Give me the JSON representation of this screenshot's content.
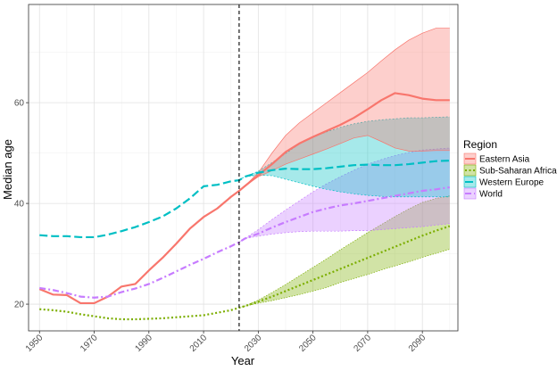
{
  "chart_data": {
    "type": "line",
    "xlabel": "Year",
    "ylabel": "Median age",
    "xlim": [
      1946,
      2103
    ],
    "ylim": [
      14.7,
      79.5
    ],
    "x_ticks": [
      1950,
      1970,
      1990,
      2010,
      2030,
      2050,
      2070,
      2090
    ],
    "y_ticks": [
      20,
      40,
      60
    ],
    "grid": true,
    "vline": 2023,
    "legend": {
      "title": "Region",
      "position": "right"
    },
    "series": [
      {
        "name": "Eastern Asia",
        "color": "#f8766d",
        "dash": "solid",
        "x": [
          1950,
          1955,
          1960,
          1965,
          1970,
          1975,
          1980,
          1985,
          1990,
          1995,
          2000,
          2005,
          2010,
          2015,
          2020,
          2023,
          2025,
          2030,
          2035,
          2040,
          2045,
          2050,
          2055,
          2060,
          2065,
          2070,
          2075,
          2080,
          2085,
          2090,
          2095,
          2100
        ],
        "values": [
          23.0,
          21.9,
          21.8,
          20.2,
          20.2,
          21.5,
          23.5,
          24.0,
          26.7,
          29.2,
          32.0,
          35.0,
          37.3,
          39.0,
          41.3,
          42.5,
          43.4,
          45.6,
          47.8,
          50.2,
          51.9,
          53.2,
          54.4,
          55.6,
          57.0,
          58.7,
          60.5,
          61.9,
          61.5,
          60.8,
          60.5,
          60.5
        ],
        "band_upper": [
          null,
          null,
          null,
          null,
          null,
          null,
          null,
          null,
          null,
          null,
          null,
          null,
          null,
          null,
          null,
          42.5,
          43.4,
          46.1,
          50.0,
          53.5,
          56.0,
          58.0,
          60.0,
          62.0,
          64.0,
          66.0,
          68.3,
          70.5,
          72.4,
          73.8,
          74.8,
          74.8
        ],
        "band_lower": [
          null,
          null,
          null,
          null,
          null,
          null,
          null,
          null,
          null,
          null,
          null,
          null,
          null,
          null,
          null,
          42.5,
          43.4,
          45.3,
          46.5,
          47.8,
          48.8,
          49.8,
          50.8,
          51.9,
          53.0,
          53.5,
          52.3,
          51.0,
          50.4,
          50.4,
          50.5,
          50.5
        ]
      },
      {
        "name": "Sub-Saharan Africa",
        "color": "#7cae00",
        "dash": "dotted",
        "x": [
          1950,
          1955,
          1960,
          1965,
          1970,
          1975,
          1980,
          1985,
          1990,
          1995,
          2000,
          2005,
          2010,
          2015,
          2020,
          2023,
          2025,
          2030,
          2035,
          2040,
          2045,
          2050,
          2055,
          2060,
          2065,
          2070,
          2075,
          2080,
          2085,
          2090,
          2095,
          2100
        ],
        "values": [
          19.0,
          18.8,
          18.5,
          18.0,
          17.6,
          17.2,
          17.0,
          17.0,
          17.1,
          17.2,
          17.4,
          17.6,
          17.8,
          18.3,
          18.8,
          19.3,
          19.6,
          20.5,
          21.5,
          22.6,
          23.7,
          24.8,
          25.9,
          27.0,
          28.1,
          29.2,
          30.3,
          31.4,
          32.5,
          33.6,
          34.6,
          35.5
        ],
        "band_upper": [
          null,
          null,
          null,
          null,
          null,
          null,
          null,
          null,
          null,
          null,
          null,
          null,
          null,
          null,
          null,
          19.3,
          19.6,
          20.8,
          22.3,
          23.9,
          25.6,
          27.3,
          29.0,
          30.8,
          32.5,
          34.2,
          35.8,
          37.4,
          38.9,
          40.2,
          41.0,
          41.5
        ],
        "band_lower": [
          null,
          null,
          null,
          null,
          null,
          null,
          null,
          null,
          null,
          null,
          null,
          null,
          null,
          null,
          null,
          19.3,
          19.6,
          20.2,
          20.7,
          21.3,
          21.9,
          22.6,
          23.3,
          24.3,
          25.1,
          25.9,
          26.8,
          27.6,
          28.4,
          29.3,
          30.1,
          30.9
        ]
      },
      {
        "name": "Western Europe",
        "color": "#00bfc4",
        "dash": "longdash",
        "x": [
          1950,
          1955,
          1960,
          1965,
          1970,
          1975,
          1980,
          1985,
          1990,
          1995,
          2000,
          2005,
          2010,
          2015,
          2020,
          2023,
          2025,
          2030,
          2035,
          2040,
          2045,
          2050,
          2055,
          2060,
          2065,
          2070,
          2075,
          2080,
          2085,
          2090,
          2095,
          2100
        ],
        "values": [
          33.7,
          33.5,
          33.5,
          33.3,
          33.3,
          33.8,
          34.5,
          35.3,
          36.3,
          37.4,
          39.0,
          41.0,
          43.4,
          43.7,
          44.4,
          44.6,
          45.3,
          46.1,
          46.6,
          46.9,
          46.8,
          46.8,
          47.0,
          47.3,
          47.6,
          47.7,
          47.6,
          47.6,
          47.8,
          48.1,
          48.4,
          48.5
        ],
        "band_upper": [
          null,
          null,
          null,
          null,
          null,
          null,
          null,
          null,
          null,
          null,
          null,
          null,
          null,
          null,
          null,
          44.6,
          45.3,
          46.4,
          48.1,
          49.9,
          51.8,
          53.2,
          54.2,
          55.1,
          55.8,
          56.3,
          56.6,
          56.8,
          57.0,
          57.0,
          57.1,
          57.2
        ],
        "band_lower": [
          null,
          null,
          null,
          null,
          null,
          null,
          null,
          null,
          null,
          null,
          null,
          null,
          null,
          null,
          null,
          44.6,
          45.3,
          45.6,
          45.5,
          44.8,
          44.1,
          43.4,
          42.8,
          42.3,
          41.9,
          41.6,
          41.4,
          41.3,
          41.3,
          41.3,
          41.3,
          41.3
        ]
      },
      {
        "name": "World",
        "color": "#c77cff",
        "dash": "dashdot",
        "x": [
          1950,
          1955,
          1960,
          1965,
          1970,
          1975,
          1980,
          1985,
          1990,
          1995,
          2000,
          2005,
          2010,
          2015,
          2020,
          2023,
          2025,
          2030,
          2035,
          2040,
          2045,
          2050,
          2055,
          2060,
          2065,
          2070,
          2075,
          2080,
          2085,
          2090,
          2095,
          2100
        ],
        "values": [
          23.2,
          22.8,
          22.2,
          21.5,
          21.3,
          21.5,
          22.4,
          23.1,
          24.0,
          25.2,
          26.5,
          27.8,
          29.0,
          30.3,
          31.5,
          32.3,
          33.0,
          34.0,
          35.2,
          36.3,
          37.3,
          38.3,
          39.0,
          39.6,
          40.0,
          40.5,
          41.0,
          41.5,
          42.0,
          42.5,
          42.8,
          43.2
        ],
        "band_upper": [
          null,
          null,
          null,
          null,
          null,
          null,
          null,
          null,
          null,
          null,
          null,
          null,
          null,
          null,
          null,
          32.3,
          33.0,
          34.8,
          36.8,
          38.7,
          40.5,
          42.3,
          43.9,
          45.3,
          46.6,
          47.8,
          48.7,
          49.5,
          50.1,
          50.6,
          50.8,
          51.0
        ],
        "band_lower": [
          null,
          null,
          null,
          null,
          null,
          null,
          null,
          null,
          null,
          null,
          null,
          null,
          null,
          null,
          null,
          32.3,
          33.0,
          33.5,
          33.9,
          34.2,
          34.4,
          34.5,
          34.5,
          34.5,
          34.6,
          34.6,
          34.8,
          35.0,
          35.2,
          35.4,
          35.7,
          36.0
        ]
      }
    ]
  }
}
